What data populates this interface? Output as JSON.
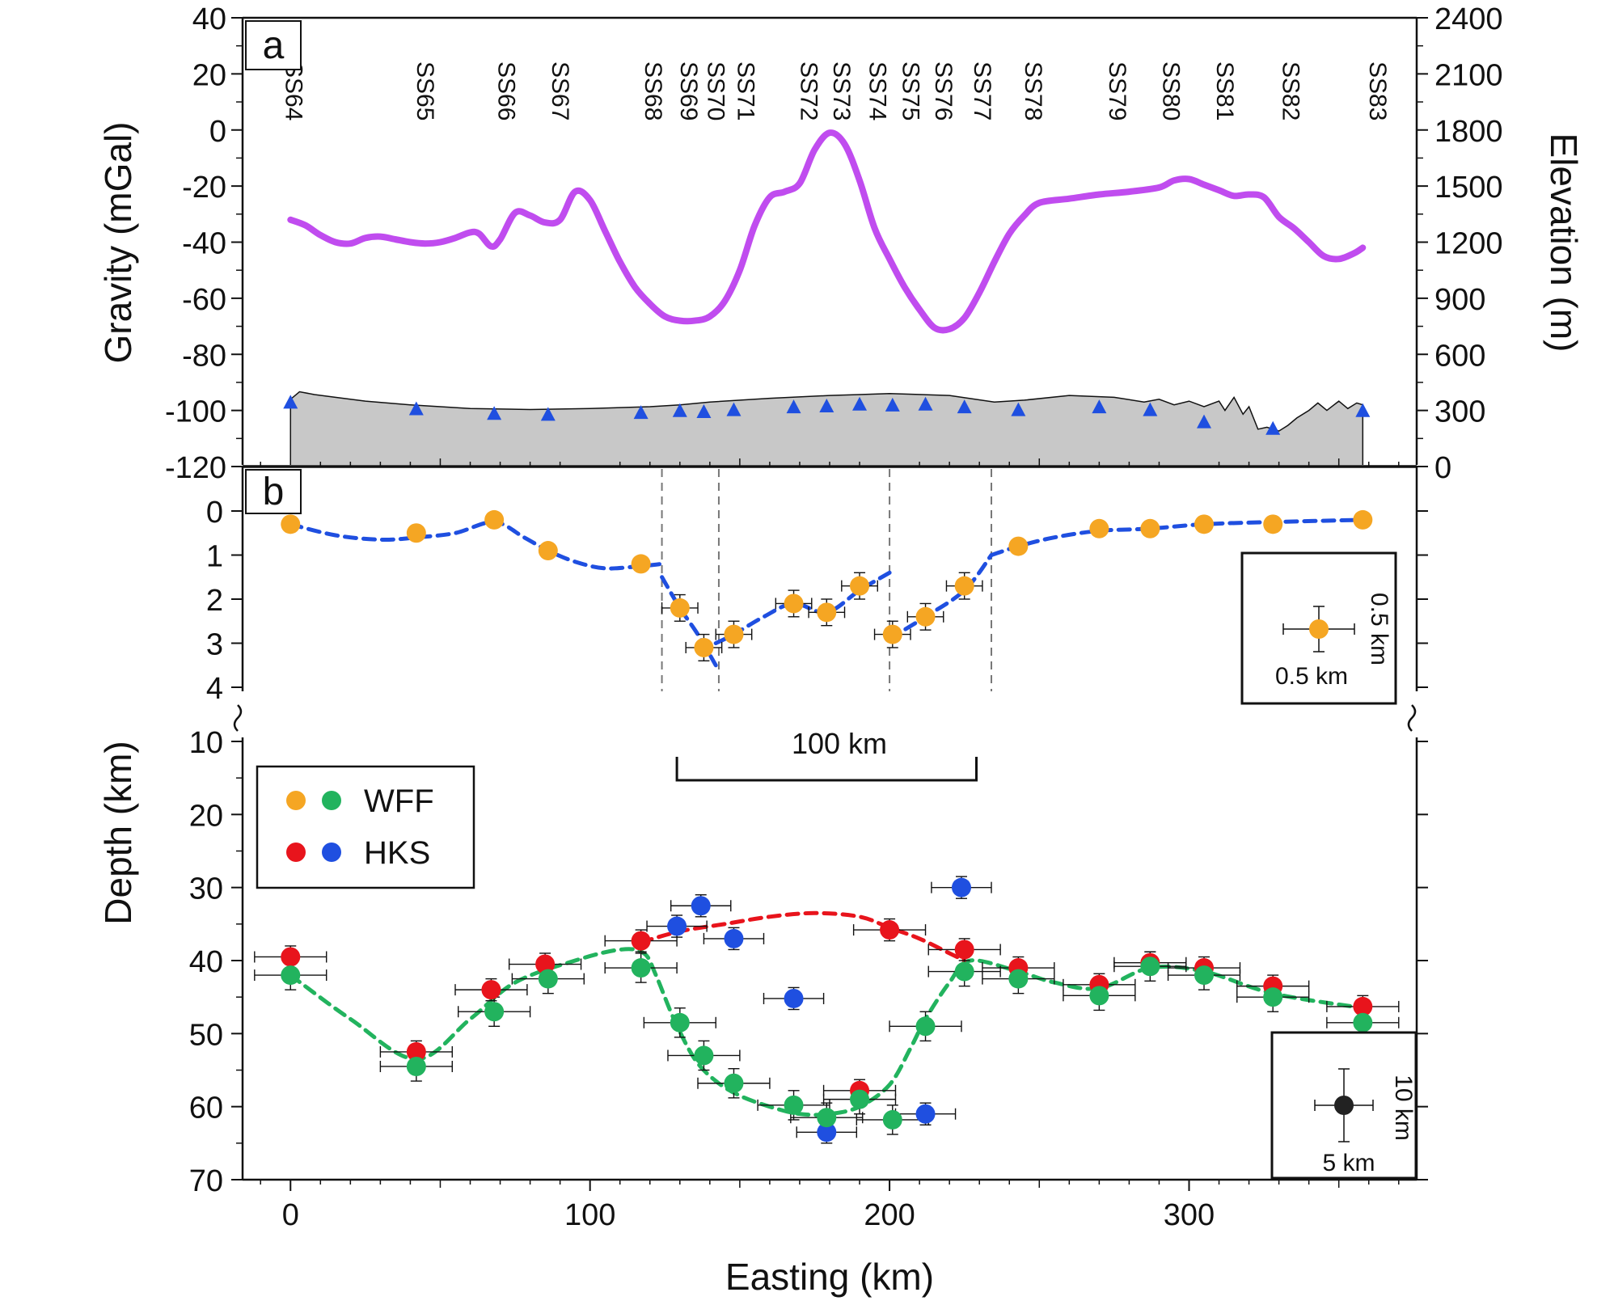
{
  "chart_data": [
    {
      "panel": "a",
      "type": "line",
      "panel_label": "a",
      "xlim": [
        -16,
        376
      ],
      "ylabel_left": "Gravity (mGal)",
      "ylim_left": [
        -120,
        40
      ],
      "yticks_left": [
        40,
        20,
        0,
        -20,
        -40,
        -60,
        -80,
        -100,
        -120
      ],
      "ylabel_right": "Elevation (m)",
      "ylim_right": [
        0,
        2400
      ],
      "yticks_right": [
        2400,
        2100,
        1800,
        1500,
        1200,
        900,
        600,
        300,
        0
      ],
      "gravity": {
        "color": "#c04cef",
        "x": [
          0,
          5,
          10,
          15,
          20,
          25,
          30,
          35,
          40,
          45,
          50,
          55,
          60,
          63,
          67,
          70,
          75,
          80,
          85,
          90,
          95,
          100,
          105,
          110,
          115,
          120,
          125,
          130,
          135,
          140,
          145,
          150,
          155,
          160,
          165,
          170,
          175,
          180,
          185,
          190,
          195,
          200,
          205,
          210,
          215,
          220,
          225,
          230,
          235,
          240,
          245,
          250,
          260,
          270,
          280,
          290,
          295,
          300,
          305,
          310,
          315,
          320,
          325,
          330,
          335,
          340,
          345,
          350,
          355,
          358
        ],
        "values": [
          -32,
          -34,
          -37.5,
          -40,
          -40.5,
          -38.5,
          -38,
          -39,
          -40,
          -40.5,
          -40,
          -38.5,
          -36.5,
          -37,
          -41.5,
          -39,
          -29.5,
          -30.5,
          -33,
          -32,
          -22,
          -25,
          -36,
          -47,
          -56,
          -62,
          -66.5,
          -68,
          -68,
          -66.5,
          -61,
          -50,
          -34,
          -24,
          -22,
          -19,
          -7,
          -1,
          -5,
          -18,
          -35,
          -46,
          -56,
          -64,
          -70.5,
          -71,
          -67,
          -58,
          -47,
          -37,
          -30.5,
          -26,
          -24.5,
          -23,
          -22,
          -20.5,
          -18,
          -17.5,
          -19.5,
          -21.5,
          -23.5,
          -23,
          -24,
          -31,
          -35,
          -40,
          -45,
          -46,
          -44,
          -42
        ]
      },
      "elevation": {
        "fill": "#c8c8c8",
        "x": [
          0,
          3,
          8,
          15,
          25,
          40,
          60,
          80,
          100,
          120,
          130,
          140,
          160,
          180,
          190,
          200,
          220,
          235,
          245,
          260,
          275,
          285,
          290,
          295,
          300,
          305,
          310,
          312,
          315,
          318,
          320,
          323,
          326,
          330,
          333,
          336,
          340,
          343,
          346,
          350,
          353,
          356,
          358
        ],
        "values": [
          360,
          400,
          385,
          370,
          350,
          330,
          310,
          305,
          310,
          320,
          330,
          345,
          365,
          380,
          385,
          390,
          380,
          345,
          355,
          380,
          370,
          345,
          360,
          330,
          350,
          320,
          350,
          300,
          370,
          280,
          320,
          200,
          210,
          190,
          220,
          260,
          300,
          340,
          300,
          350,
          310,
          340,
          330
        ]
      },
      "stations": {
        "marker": "triangle",
        "color": "#1f4fe0",
        "names": [
          "SS64",
          "SS65",
          "SS66",
          "SS67",
          "SS68",
          "SS69",
          "SS70",
          "SS71",
          "SS72",
          "SS73",
          "SS74",
          "SS75",
          "SS76",
          "SS77",
          "SS78",
          "SS79",
          "SS80",
          "SS81",
          "SS82",
          "SS83"
        ],
        "label_x": [
          0,
          44,
          71,
          89,
          120,
          132,
          141,
          151,
          172,
          183,
          195,
          206,
          217,
          230,
          247,
          275,
          293,
          311,
          333,
          362
        ],
        "x": [
          0,
          42,
          68,
          86,
          117,
          130,
          138,
          148,
          168,
          179,
          190,
          201,
          212,
          225,
          243,
          270,
          287,
          305,
          328,
          358
        ],
        "elevation": [
          340,
          305,
          280,
          275,
          285,
          295,
          290,
          300,
          315,
          320,
          330,
          325,
          330,
          315,
          300,
          315,
          300,
          235,
          200,
          295
        ]
      }
    },
    {
      "panel": "b",
      "type": "line",
      "panel_label": "b",
      "xlim": [
        -16,
        376
      ],
      "ylim": [
        0,
        4
      ],
      "yticks": [
        0,
        1,
        2,
        3,
        4
      ],
      "fit_line": {
        "color": "#1f4fe0",
        "segments": [
          {
            "x": [
              0,
              15,
              30,
              42,
              55,
              68,
              78,
              86,
              95,
              105,
              117,
              124
            ],
            "values": [
              0.3,
              0.55,
              0.65,
              0.6,
              0.5,
              0.25,
              0.6,
              0.9,
              1.15,
              1.3,
              1.25,
              1.2
            ]
          },
          {
            "x": [
              124,
              130,
              136,
              142
            ],
            "values": [
              1.5,
              2.2,
              2.8,
              3.5
            ]
          },
          {
            "x": [
              142,
              148,
              158,
              168,
              179,
              190,
              200
            ],
            "values": [
              3.0,
              2.8,
              2.4,
              2.1,
              2.3,
              1.8,
              1.4
            ]
          },
          {
            "x": [
              200,
              212,
              225,
              234
            ],
            "values": [
              2.9,
              2.4,
              1.8,
              1.0
            ]
          },
          {
            "x": [
              234,
              243,
              255,
              270,
              287,
              305,
              328,
              358
            ],
            "values": [
              1.0,
              0.8,
              0.6,
              0.45,
              0.4,
              0.3,
              0.25,
              0.2
            ]
          }
        ]
      },
      "boundaries_x": [
        124,
        143,
        200,
        234
      ],
      "points": {
        "color": "#f5a623",
        "x": [
          0,
          42,
          68,
          86,
          117,
          130,
          138,
          148,
          168,
          179,
          190,
          201,
          212,
          225,
          243,
          270,
          287,
          305,
          328,
          358
        ],
        "values": [
          0.3,
          0.5,
          0.2,
          0.9,
          1.2,
          2.2,
          3.1,
          2.8,
          2.1,
          2.3,
          1.7,
          2.8,
          2.4,
          1.7,
          0.8,
          0.4,
          0.4,
          0.3,
          0.3,
          0.2
        ],
        "x_err_on": [
          130,
          138,
          148,
          168,
          179,
          190,
          201,
          212,
          225
        ],
        "x_err": 6,
        "y_err": 0.5
      },
      "error_legend": {
        "x_label": "0.5 km",
        "y_label": "0.5 km"
      }
    },
    {
      "panel": "c",
      "type": "scatter",
      "xlabel": "Easting (km)",
      "xlim": [
        -16,
        376
      ],
      "xticks": [
        0,
        100,
        200,
        300
      ],
      "ylabel": "Depth (km)",
      "ylim": [
        10,
        70
      ],
      "yticks": [
        10,
        20,
        30,
        40,
        50,
        60,
        70
      ],
      "scale_bar": {
        "label": "100 km",
        "length_km": 100,
        "start_x": 129
      },
      "legend": [
        {
          "label": "WFF",
          "colors": [
            "#f5a623",
            "#22b35e"
          ]
        },
        {
          "label": "HKS",
          "colors": [
            "#e8141c",
            "#1f4fe0"
          ]
        }
      ],
      "series": [
        {
          "name": "WFF",
          "color": "#22b35e",
          "x": [
            0,
            42,
            68,
            86,
            117,
            130,
            138,
            148,
            168,
            179,
            190,
            201,
            212,
            225,
            243,
            270,
            287,
            305,
            328,
            358
          ],
          "values": [
            42,
            54.5,
            47,
            42.5,
            41,
            48.5,
            53,
            56.8,
            59.8,
            61.5,
            59,
            61.8,
            49,
            41.5,
            42.5,
            44.8,
            40.8,
            42,
            45,
            48.5
          ],
          "x_err": 12,
          "y_err": 2
        },
        {
          "name": "HKS",
          "color": "#e8141c",
          "x": [
            0,
            42,
            67,
            85,
            117,
            190,
            200,
            225,
            243,
            270,
            287,
            305,
            328,
            358
          ],
          "values": [
            39.5,
            52.5,
            44,
            40.5,
            37.3,
            57.8,
            35.8,
            38.5,
            41,
            43.3,
            40.3,
            41,
            43.5,
            46.3
          ],
          "x_err": 12,
          "y_err": 1.5
        },
        {
          "name": "HKS",
          "color": "#1f4fe0",
          "x": [
            129,
            137,
            148,
            168,
            179,
            212,
            224
          ],
          "values": [
            35.3,
            32.5,
            37,
            45.2,
            63.5,
            61,
            30
          ],
          "x_err": 10,
          "y_err": 1.5
        }
      ],
      "fit_lines": [
        {
          "color": "#22b35e",
          "x": [
            0,
            20,
            42,
            60,
            75,
            95,
            110,
            118,
            122,
            128,
            135,
            142,
            150,
            160,
            170,
            180,
            190,
            200,
            207,
            212,
            220,
            227,
            243,
            255,
            270,
            287,
            305,
            328,
            358
          ],
          "values": [
            42,
            48,
            53.5,
            48,
            43,
            40,
            38.5,
            39,
            42,
            48,
            53.5,
            56.5,
            58.5,
            60,
            61,
            61,
            60,
            57,
            52,
            48,
            43,
            40,
            41.5,
            43,
            43.8,
            41,
            41.5,
            44.5,
            46.5
          ]
        },
        {
          "color": "#e8141c",
          "x": [
            117,
            130,
            145,
            160,
            175,
            190,
            200,
            210,
            220,
            225
          ],
          "values": [
            37.5,
            36,
            35,
            34,
            33.5,
            34,
            35.5,
            37,
            39,
            40
          ]
        }
      ],
      "error_legend": {
        "x_label": "5 km",
        "y_label": "10 km",
        "x_err": 5,
        "y_err": 5
      }
    }
  ]
}
